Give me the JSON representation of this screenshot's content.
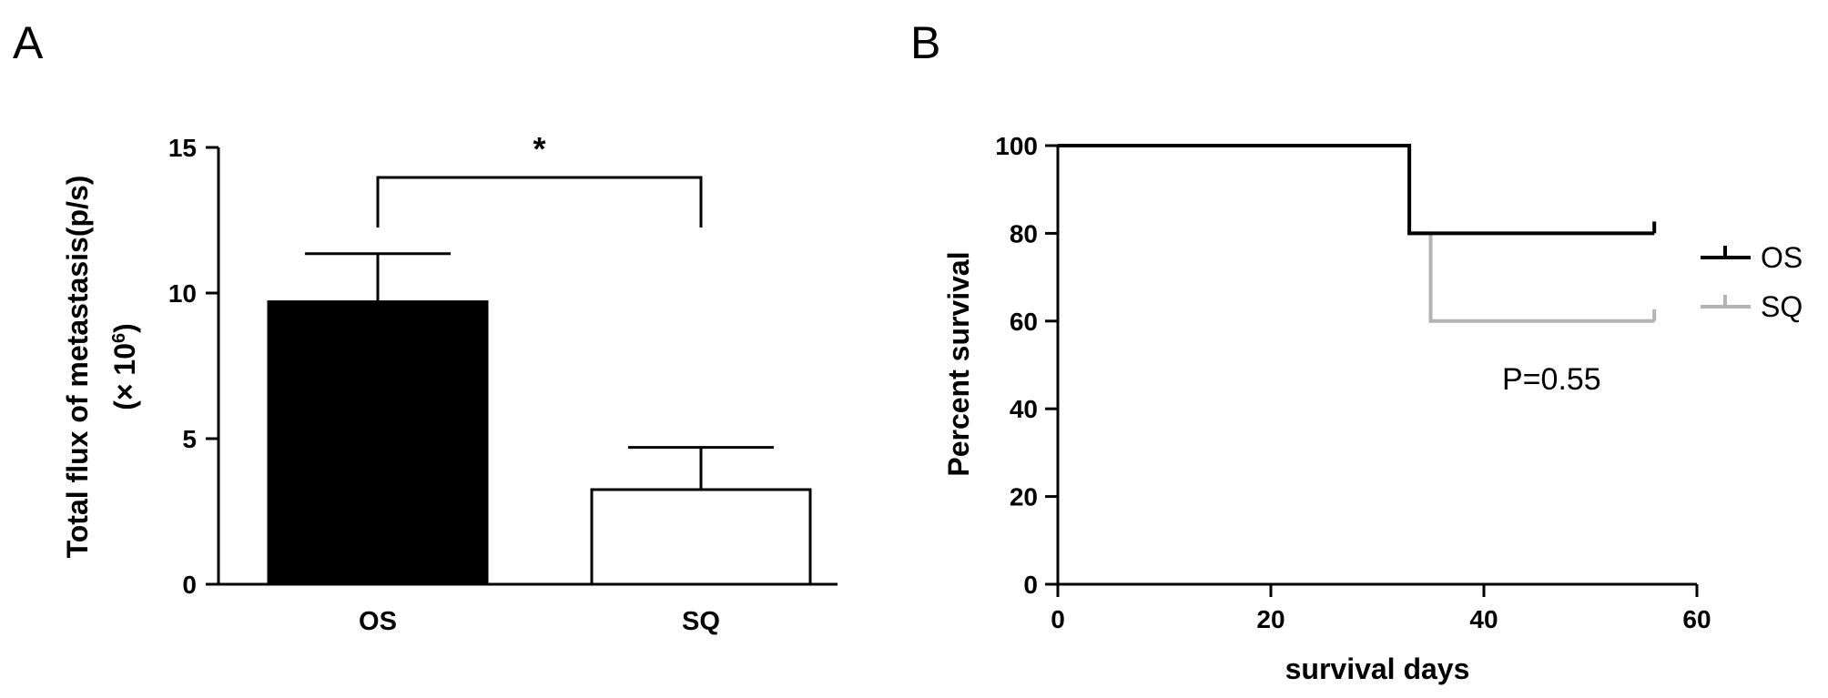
{
  "panels": {
    "a_label": "A",
    "b_label": "B"
  },
  "chart_data": [
    {
      "type": "bar",
      "panel": "A",
      "categories": [
        "OS",
        "SQ"
      ],
      "values": [
        9.7,
        3.25
      ],
      "errors": [
        1.65,
        1.45
      ],
      "bar_colors": [
        "#000000",
        "#ffffff"
      ],
      "ylabel_line1": "Total flux of metastasis(p/s)",
      "ylabel_line2_prefix": "(× 10",
      "ylabel_line2_exp": "6",
      "ylabel_line2_suffix": ")",
      "xlabel": "",
      "ylim": [
        0,
        15
      ],
      "yticks": [
        0,
        5,
        10,
        15
      ],
      "significance": {
        "symbol": "*",
        "between": [
          "OS",
          "SQ"
        ]
      },
      "grid": false
    },
    {
      "type": "line",
      "panel": "B",
      "xlabel": "survival days",
      "ylabel": "Percent survival",
      "xlim": [
        0,
        60
      ],
      "ylim": [
        0,
        100
      ],
      "xticks": [
        0,
        20,
        40,
        60
      ],
      "yticks": [
        0,
        20,
        40,
        60,
        80,
        100
      ],
      "series": [
        {
          "name": "OS",
          "color": "#000000",
          "points": [
            [
              0,
              100
            ],
            [
              33,
              100
            ],
            [
              33,
              80
            ],
            [
              56,
              80
            ]
          ],
          "censored": [
            [
              56,
              80
            ]
          ]
        },
        {
          "name": "SQ",
          "color": "#b3b3b3",
          "points": [
            [
              0,
              100
            ],
            [
              33,
              100
            ],
            [
              33,
              80
            ],
            [
              35,
              80
            ],
            [
              35,
              60
            ],
            [
              56,
              60
            ]
          ],
          "censored": [
            [
              56,
              60
            ]
          ]
        }
      ],
      "annotation": "P=0.55",
      "legend_position": "right",
      "grid": false
    }
  ]
}
